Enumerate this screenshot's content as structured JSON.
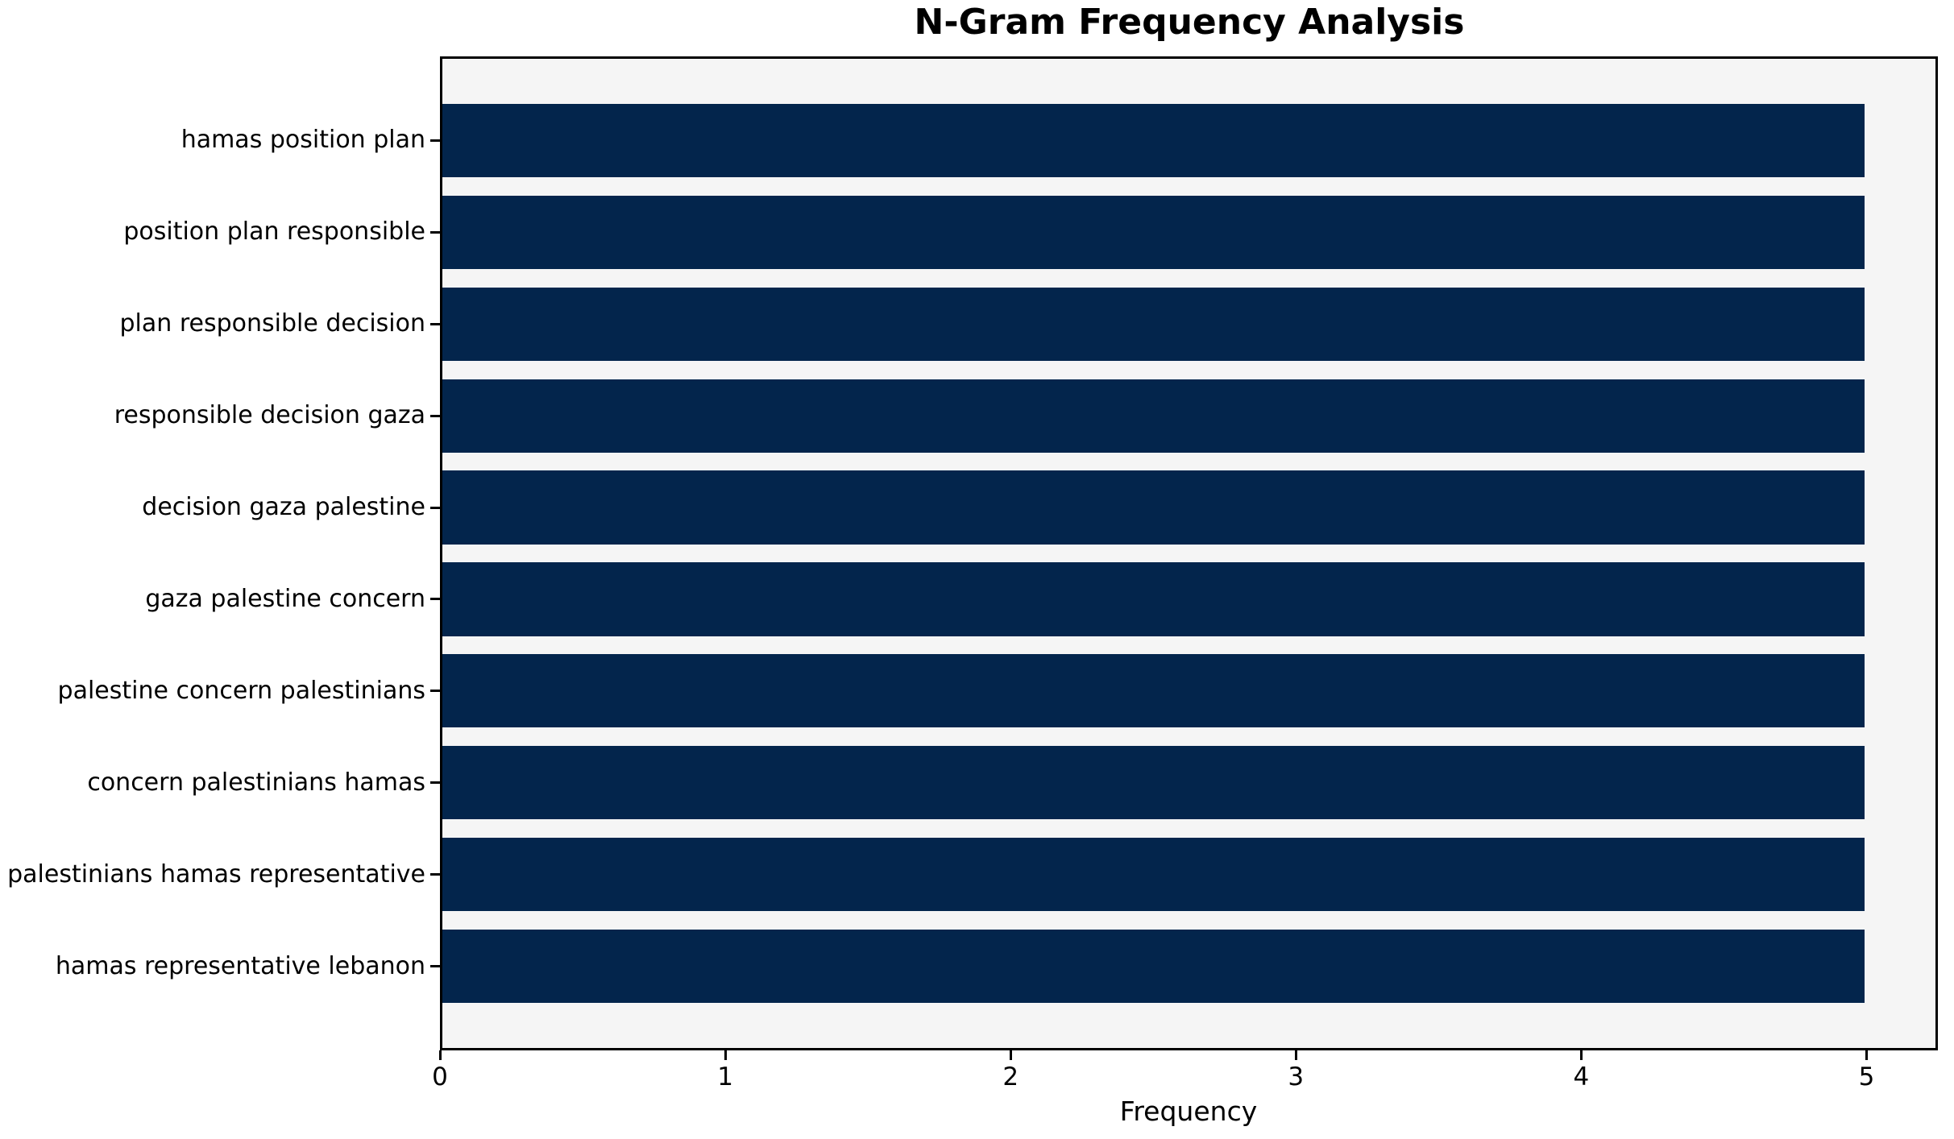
{
  "chart_data": {
    "type": "bar",
    "orientation": "horizontal",
    "title": "N-Gram Frequency Analysis",
    "xlabel": "Frequency",
    "categories": [
      "hamas position plan",
      "position plan responsible",
      "plan responsible decision",
      "responsible decision gaza",
      "decision gaza palestine",
      "gaza palestine concern",
      "palestine concern palestinians",
      "concern palestinians hamas",
      "palestinians hamas representative",
      "hamas representative lebanon"
    ],
    "values": [
      5,
      5,
      5,
      5,
      5,
      5,
      5,
      5,
      5,
      5
    ],
    "xticks": [
      0,
      1,
      2,
      3,
      4,
      5
    ],
    "xlim": [
      0,
      5.25
    ],
    "grid": false,
    "legend": "none",
    "bar_color": "#03254c",
    "plot_bg": "#f5f5f5",
    "figure_bg": "#ffffff",
    "spine_color": "#000000"
  }
}
